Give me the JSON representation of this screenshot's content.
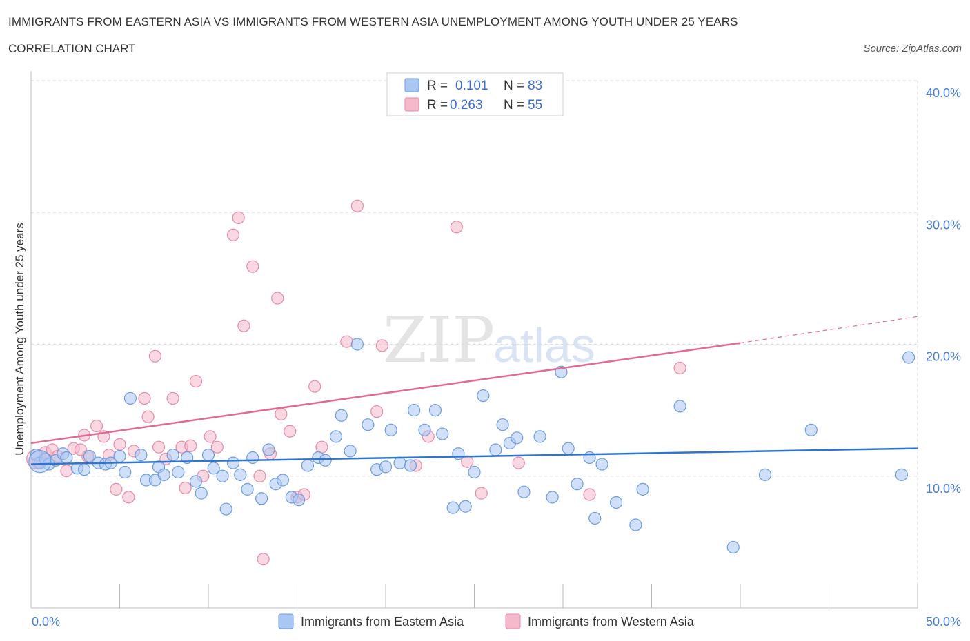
{
  "header": {
    "title": "IMMIGRANTS FROM EASTERN ASIA VS IMMIGRANTS FROM WESTERN ASIA UNEMPLOYMENT AMONG YOUTH UNDER 25 YEARS",
    "subtitle": "CORRELATION CHART",
    "source": "Source: ZipAtlas.com"
  },
  "legend": {
    "r_label": "R =",
    "n_label": "N =",
    "rows": [
      {
        "r": "0.101",
        "n": "83"
      },
      {
        "r": "0.263",
        "n": "55"
      }
    ]
  },
  "watermark": {
    "zip": "ZIP",
    "atlas": "atlas"
  },
  "colors": {
    "blue_fill": "#a9c7f2",
    "blue_stroke": "#6b9be0",
    "blue_line": "#2f74d0",
    "pink_fill": "#f6b8cb",
    "pink_stroke": "#e58aa8",
    "pink_line": "#e06a93",
    "grid": "#d9d9d9",
    "axis_text": "#4a7fd6"
  },
  "chart_data": {
    "type": "scatter",
    "title": "IMMIGRANTS FROM EASTERN ASIA VS IMMIGRANTS FROM WESTERN ASIA UNEMPLOYMENT AMONG YOUTH UNDER 25 YEARS",
    "xlabel": "",
    "ylabel": "Unemployment Among Youth under 25 years",
    "xlim": [
      0,
      50
    ],
    "ylim": [
      0,
      40
    ],
    "x_tick_labels": [
      "0.0%",
      "50.0%"
    ],
    "y_ticks": [
      10,
      20,
      30,
      40
    ],
    "y_tick_labels": [
      "10.0%",
      "20.0%",
      "30.0%",
      "40.0%"
    ],
    "grid": true,
    "legend_position": "top-center",
    "series": [
      {
        "name": "Immigrants from Eastern Asia",
        "color": "blue",
        "R": 0.101,
        "N": 83,
        "trend": {
          "x": [
            0,
            50
          ],
          "y": [
            10.9,
            12.1
          ]
        },
        "points": [
          [
            0.3,
            11.6
          ],
          [
            0.5,
            11.0
          ],
          [
            0.8,
            11.3
          ],
          [
            1.0,
            10.9
          ],
          [
            1.4,
            11.2
          ],
          [
            1.8,
            11.7
          ],
          [
            2.0,
            11.4
          ],
          [
            2.6,
            10.6
          ],
          [
            3.0,
            10.5
          ],
          [
            3.3,
            11.5
          ],
          [
            3.8,
            11.0
          ],
          [
            4.2,
            10.9
          ],
          [
            4.5,
            11.0
          ],
          [
            5.0,
            11.5
          ],
          [
            5.3,
            10.3
          ],
          [
            5.6,
            15.9
          ],
          [
            6.2,
            11.6
          ],
          [
            6.5,
            9.7
          ],
          [
            7.0,
            9.7
          ],
          [
            7.2,
            10.7
          ],
          [
            7.5,
            10.1
          ],
          [
            8.0,
            11.6
          ],
          [
            8.3,
            10.3
          ],
          [
            8.8,
            11.4
          ],
          [
            9.3,
            9.6
          ],
          [
            9.6,
            8.7
          ],
          [
            10.0,
            11.6
          ],
          [
            10.3,
            10.6
          ],
          [
            10.8,
            10.0
          ],
          [
            11.0,
            7.5
          ],
          [
            11.4,
            11.0
          ],
          [
            11.8,
            10.1
          ],
          [
            12.2,
            9.0
          ],
          [
            12.5,
            11.4
          ],
          [
            13.0,
            8.3
          ],
          [
            13.4,
            12.0
          ],
          [
            13.8,
            9.4
          ],
          [
            14.2,
            9.7
          ],
          [
            14.7,
            8.4
          ],
          [
            15.1,
            8.2
          ],
          [
            15.6,
            10.8
          ],
          [
            16.2,
            11.4
          ],
          [
            16.6,
            11.2
          ],
          [
            17.2,
            13.0
          ],
          [
            17.5,
            14.6
          ],
          [
            18.0,
            11.9
          ],
          [
            18.4,
            20.0
          ],
          [
            19.0,
            13.9
          ],
          [
            19.5,
            10.5
          ],
          [
            20.0,
            10.7
          ],
          [
            20.3,
            13.5
          ],
          [
            20.8,
            11.0
          ],
          [
            21.4,
            10.8
          ],
          [
            21.6,
            15.0
          ],
          [
            22.2,
            13.5
          ],
          [
            22.8,
            15.0
          ],
          [
            23.2,
            13.2
          ],
          [
            23.8,
            7.6
          ],
          [
            24.1,
            11.7
          ],
          [
            24.5,
            7.7
          ],
          [
            25.0,
            10.3
          ],
          [
            25.5,
            16.1
          ],
          [
            26.2,
            12.0
          ],
          [
            26.6,
            13.9
          ],
          [
            27.0,
            12.5
          ],
          [
            27.4,
            12.9
          ],
          [
            27.8,
            8.8
          ],
          [
            28.7,
            13.0
          ],
          [
            29.4,
            8.4
          ],
          [
            29.9,
            17.9
          ],
          [
            30.3,
            12.1
          ],
          [
            30.8,
            9.4
          ],
          [
            31.5,
            11.4
          ],
          [
            31.8,
            6.8
          ],
          [
            32.2,
            10.9
          ],
          [
            33.0,
            8.0
          ],
          [
            34.1,
            6.3
          ],
          [
            34.5,
            9.0
          ],
          [
            36.6,
            15.3
          ],
          [
            39.6,
            4.6
          ],
          [
            41.4,
            10.1
          ],
          [
            44.0,
            13.5
          ],
          [
            49.1,
            10.1
          ],
          [
            49.5,
            19.0
          ]
        ]
      },
      {
        "name": "Immigrants from Western Asia",
        "color": "pink",
        "R": 0.263,
        "N": 55,
        "trend": {
          "x": [
            0,
            40
          ],
          "y": [
            12.5,
            20.1
          ]
        },
        "trend_dashed": {
          "x": [
            40,
            50
          ],
          "y": [
            20.1,
            22.1
          ]
        },
        "points": [
          [
            0.4,
            11.0
          ],
          [
            0.8,
            11.8
          ],
          [
            1.2,
            12.0
          ],
          [
            1.5,
            11.5
          ],
          [
            2.0,
            10.4
          ],
          [
            2.4,
            12.1
          ],
          [
            2.8,
            12.0
          ],
          [
            3.0,
            13.1
          ],
          [
            3.2,
            11.5
          ],
          [
            3.7,
            13.8
          ],
          [
            4.1,
            13.0
          ],
          [
            4.4,
            11.6
          ],
          [
            4.8,
            9.0
          ],
          [
            5.0,
            12.4
          ],
          [
            5.5,
            8.4
          ],
          [
            5.8,
            11.9
          ],
          [
            6.4,
            15.9
          ],
          [
            6.6,
            14.5
          ],
          [
            7.0,
            19.1
          ],
          [
            7.2,
            12.2
          ],
          [
            7.6,
            11.3
          ],
          [
            8.0,
            15.9
          ],
          [
            8.5,
            12.2
          ],
          [
            8.7,
            9.1
          ],
          [
            9.0,
            12.3
          ],
          [
            9.3,
            17.2
          ],
          [
            9.7,
            10.0
          ],
          [
            10.1,
            13.0
          ],
          [
            10.5,
            12.2
          ],
          [
            11.4,
            28.3
          ],
          [
            11.7,
            29.6
          ],
          [
            12.0,
            21.4
          ],
          [
            12.5,
            25.9
          ],
          [
            12.9,
            10.0
          ],
          [
            13.1,
            3.7
          ],
          [
            13.5,
            11.7
          ],
          [
            13.9,
            23.5
          ],
          [
            14.1,
            14.7
          ],
          [
            14.6,
            13.4
          ],
          [
            15.0,
            8.4
          ],
          [
            15.4,
            8.6
          ],
          [
            16.0,
            16.8
          ],
          [
            16.4,
            12.2
          ],
          [
            17.8,
            20.2
          ],
          [
            18.4,
            30.5
          ],
          [
            19.5,
            14.9
          ],
          [
            19.8,
            19.9
          ],
          [
            21.7,
            10.8
          ],
          [
            22.4,
            13.0
          ],
          [
            24.0,
            28.9
          ],
          [
            24.6,
            11.1
          ],
          [
            25.4,
            8.7
          ],
          [
            27.5,
            11.0
          ],
          [
            31.5,
            8.6
          ],
          [
            36.6,
            18.2
          ]
        ]
      }
    ]
  },
  "bottom_legend": [
    {
      "label": "Immigrants from Eastern Asia"
    },
    {
      "label": "Immigrants from Western Asia"
    }
  ]
}
